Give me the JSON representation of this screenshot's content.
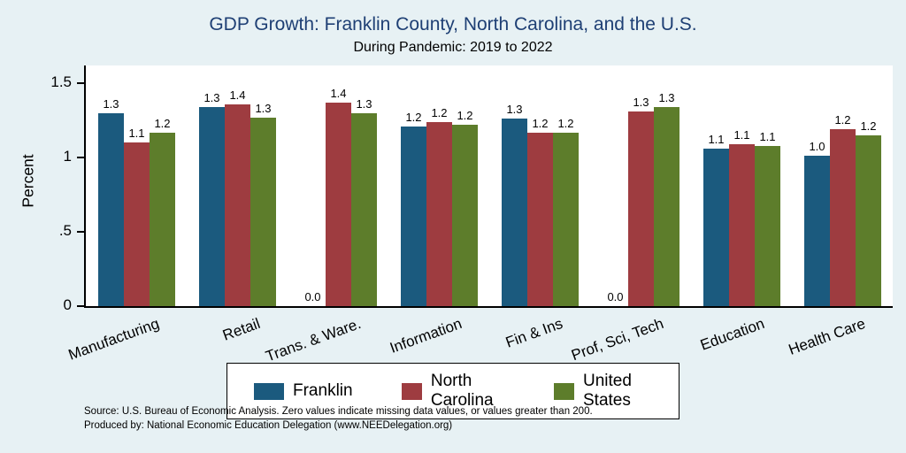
{
  "colors": {
    "background": "#e7f1f4",
    "title_text": "#1e3f74"
  },
  "source_line1": "Source: U.S. Bureau of Economic Analysis. Zero values indicate missing data values, or values greater than 200.",
  "source_line2": "Produced by: National Economic Education Delegation (www.NEEDelegation.org)",
  "chart_data": {
    "type": "bar",
    "title": "GDP Growth: Franklin County, North Carolina, and the U.S.",
    "subtitle": "During Pandemic: 2019 to 2022",
    "ylabel": "Percent",
    "ylim": [
      0,
      1.62
    ],
    "ytick_labels": [
      "0",
      ".5",
      "1",
      "1.5"
    ],
    "ytick_values": [
      0,
      0.5,
      1,
      1.5
    ],
    "grid": false,
    "legend_position": "bottom",
    "categories": [
      "Manufacturing",
      "Retail",
      "Trans. & Ware.",
      "Information",
      "Fin & Ins",
      "Prof, Sci, Tech",
      "Education",
      "Health Care"
    ],
    "series": [
      {
        "name": "Franklin",
        "color": "#1b5a7e",
        "labels": [
          "1.3",
          "1.3",
          "0.0",
          "1.2",
          "1.3",
          "0.0",
          "1.1",
          "1.0"
        ],
        "values": [
          1.3,
          1.34,
          0.0,
          1.21,
          1.26,
          0.0,
          1.06,
          1.01
        ]
      },
      {
        "name": "North Carolina",
        "color": "#9e3c40",
        "labels": [
          "1.1",
          "1.4",
          "1.4",
          "1.2",
          "1.2",
          "1.3",
          "1.1",
          "1.2"
        ],
        "values": [
          1.1,
          1.36,
          1.37,
          1.24,
          1.17,
          1.31,
          1.09,
          1.19
        ]
      },
      {
        "name": "United States",
        "color": "#5d7d2b",
        "labels": [
          "1.2",
          "1.3",
          "1.3",
          "1.2",
          "1.2",
          "1.3",
          "1.1",
          "1.2"
        ],
        "values": [
          1.17,
          1.27,
          1.3,
          1.22,
          1.17,
          1.34,
          1.08,
          1.15
        ]
      }
    ]
  }
}
